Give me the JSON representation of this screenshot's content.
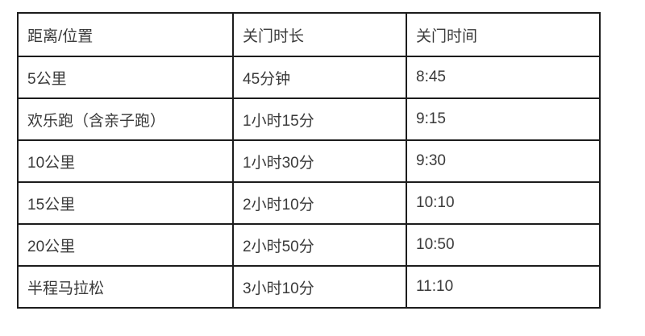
{
  "table": {
    "columns": {
      "distance": "距离/位置",
      "duration": "关门时长",
      "time": "关门时间"
    },
    "rows": [
      {
        "distance": "5公里",
        "duration": "45分钟",
        "time": "8:45"
      },
      {
        "distance": "欢乐跑（含亲子跑）",
        "duration": "1小时15分",
        "time": "9:15"
      },
      {
        "distance": "10公里",
        "duration": "1小时30分",
        "time": "9:30"
      },
      {
        "distance": "15公里",
        "duration": "2小时10分",
        "time": "10:10"
      },
      {
        "distance": "20公里",
        "duration": "2小时50分",
        "time": "10:50"
      },
      {
        "distance": "半程马拉松",
        "duration": "3小时10分",
        "time": "11:10"
      }
    ],
    "colors": {
      "border": "#1c1c1c",
      "text": "#3a3a3a",
      "background": "#ffffff"
    }
  }
}
